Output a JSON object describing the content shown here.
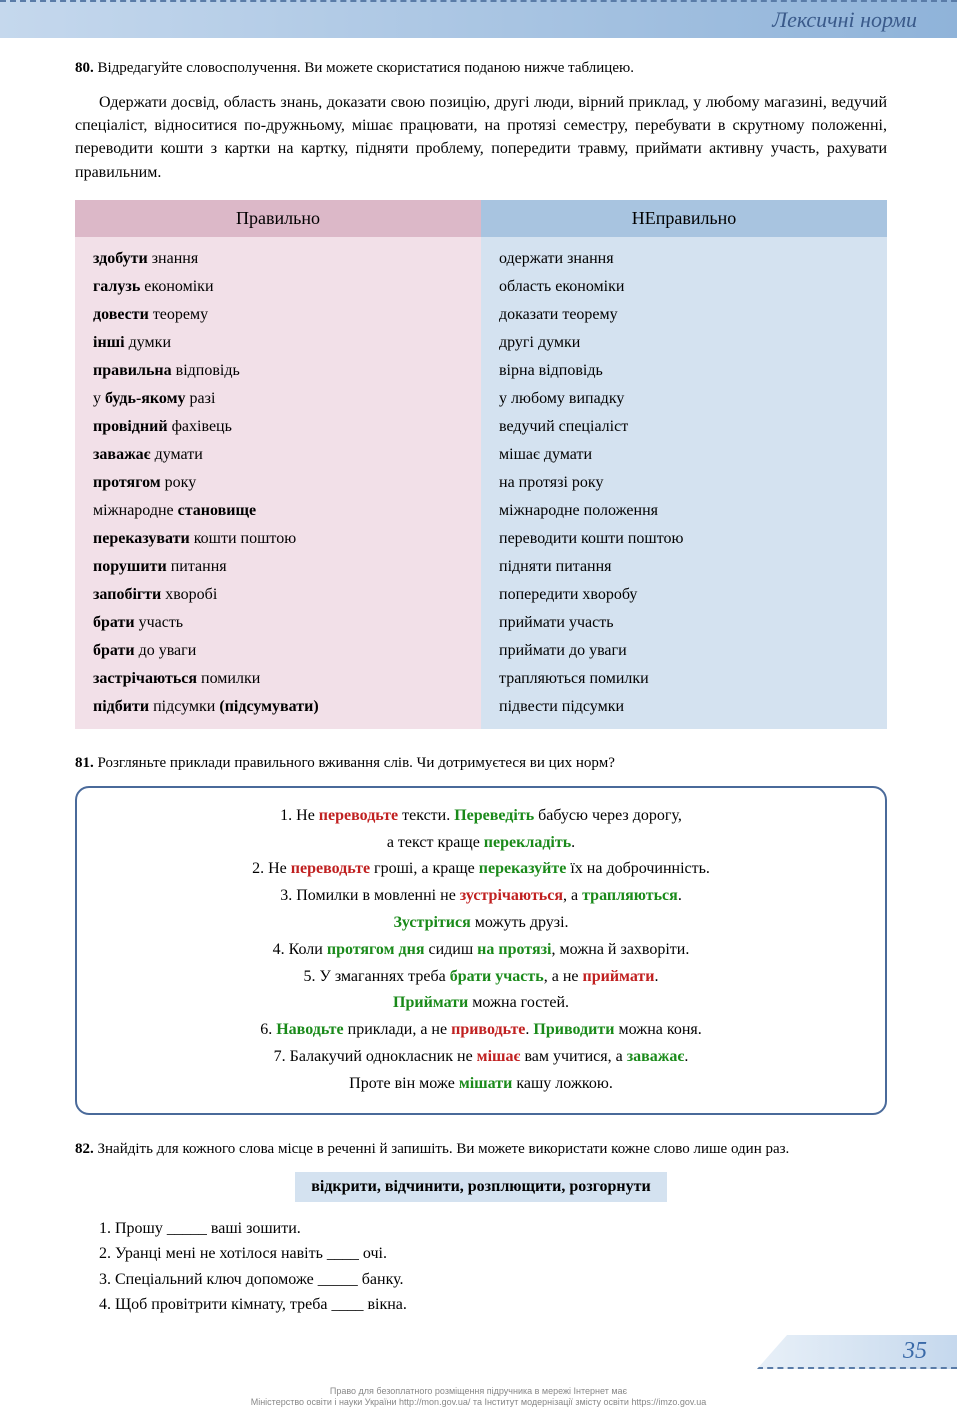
{
  "header": {
    "title": "Лексичні норми"
  },
  "ex80": {
    "num": "80.",
    "intro": "Відредагуйте словосполучення. Ви можете скористатися поданою нижче таблицею.",
    "body": "Одержати досвід, область знань, доказати свою позицію, другі люди, вірний приклад, у любому магазині, ведучий спеціаліст, відноситися по-дружньому, мішає працювати, на протязі семестру, перебувати в скрутному положенні, переводити кошти з картки на картку, підняти проблему, попередити травму, приймати активну участь, рахувати правильним."
  },
  "table": {
    "header_left": "Правильно",
    "header_right": "НЕправильно",
    "rows": [
      {
        "left_bold": "здобути",
        "left_rest": " знання",
        "right": "одержати знання"
      },
      {
        "left_bold": "галузь",
        "left_rest": " економіки",
        "right": "область економіки"
      },
      {
        "left_bold": "довести",
        "left_rest": " теорему",
        "right": "доказати теорему"
      },
      {
        "left_bold": "інші",
        "left_rest": " думки",
        "right": "другі думки"
      },
      {
        "left_bold": "правильна",
        "left_rest": " відповідь",
        "right": "вірна відповідь"
      },
      {
        "left_pre": "у ",
        "left_bold": "будь-якому",
        "left_rest": " разі",
        "right": "у любому випадку"
      },
      {
        "left_bold": "провідний",
        "left_rest": " фахівець",
        "right": "ведучий спеціаліст"
      },
      {
        "left_bold": "заважає",
        "left_rest": " думати",
        "right": "мішає думати"
      },
      {
        "left_bold": "протягом",
        "left_rest": " року",
        "right": "на протязі року"
      },
      {
        "left_pre": "міжнародне ",
        "left_bold": "становище",
        "left_rest": "",
        "right": "міжнародне положення"
      },
      {
        "left_bold": "переказувати",
        "left_rest": " кошти поштою",
        "right": "переводити кошти поштою"
      },
      {
        "left_bold": "порушити",
        "left_rest": " питання",
        "right": "підняти питання"
      },
      {
        "left_bold": "запобігти",
        "left_rest": " хворобі",
        "right": "попередити хворобу"
      },
      {
        "left_bold": "брати",
        "left_rest": " участь",
        "right": "приймати участь"
      },
      {
        "left_bold": "брати",
        "left_rest": " до уваги",
        "right": "приймати до уваги"
      },
      {
        "left_bold": "застрічаються",
        "left_rest": " помилки",
        "right": "трапляються помилки"
      },
      {
        "left_bold": "підбити",
        "left_rest": " підсумки ",
        "left_bold2": "(підсумувати)",
        "right": "підвести підсумки"
      }
    ]
  },
  "ex81": {
    "num": "81.",
    "intro": "Розгляньте приклади правильного вживання слів. Чи дотримуєтеся ви цих норм?"
  },
  "examples": {
    "l1a": "1. Не ",
    "l1r1": "переводьте",
    "l1b": " тексти. ",
    "l1g1": "Переведіть",
    "l1c": " бабусю через дорогу,",
    "l1d": "а текст краще ",
    "l1g2": "перекладіть",
    "l1e": ".",
    "l2a": "2. Не ",
    "l2r1": "переводьте",
    "l2b": " гроші, а краще ",
    "l2g1": "переказуйте",
    "l2c": " їх на доброчинність.",
    "l3a": "3. Помилки в мовленні не ",
    "l3r1": "зустрічаються",
    "l3b": ", а ",
    "l3g1": "трапляються",
    "l3c": ".",
    "l3g2": "Зустрітися",
    "l3d": " можуть друзі.",
    "l4a": "4. Коли ",
    "l4g1": "протягом дня",
    "l4b": " сидиш ",
    "l4g2": "на протязі",
    "l4c": ", можна й захворіти.",
    "l5a": "5. У змаганнях треба ",
    "l5g1": "брати участь",
    "l5b": ", а не ",
    "l5r1": "приймати",
    "l5c": ".",
    "l5g2": "Приймати",
    "l5d": " можна гостей.",
    "l6a": "6. ",
    "l6g1": "Наводьте",
    "l6b": " приклади, а не ",
    "l6r1": "приводьте",
    "l6c": ". ",
    "l6g2": "Приводити",
    "l6d": " можна коня.",
    "l7a": "7. Балакучий однокласник не ",
    "l7r1": "мішає",
    "l7b": " вам учитися, а ",
    "l7g1": "заважає",
    "l7c": ".",
    "l7d": "Проте він може ",
    "l7g2": "мішати",
    "l7e": " кашу ложкою."
  },
  "ex82": {
    "num": "82.",
    "intro": "Знайдіть для кожного слова місце в реченні й запишіть. Ви можете використати кожне слово лише один раз.",
    "words": "відкрити, відчинити, розплющити, розгорнути",
    "s1": "1. Прошу _____ ваші зошити.",
    "s2": "2. Уранці мені не хотілося навіть ____ очі.",
    "s3": "3. Спеціальний ключ допоможе _____ банку.",
    "s4": "4. Щоб провітрити кімнату, треба ____ вікна."
  },
  "page_number": "35",
  "footer": {
    "l1": "Право для безоплатного розміщення підручника в мережі Інтернет має",
    "l2": "Міністерство освіти і науки України http://mon.gov.ua/ та Інститут модернізації змісту освіти https://imzo.gov.ua"
  }
}
